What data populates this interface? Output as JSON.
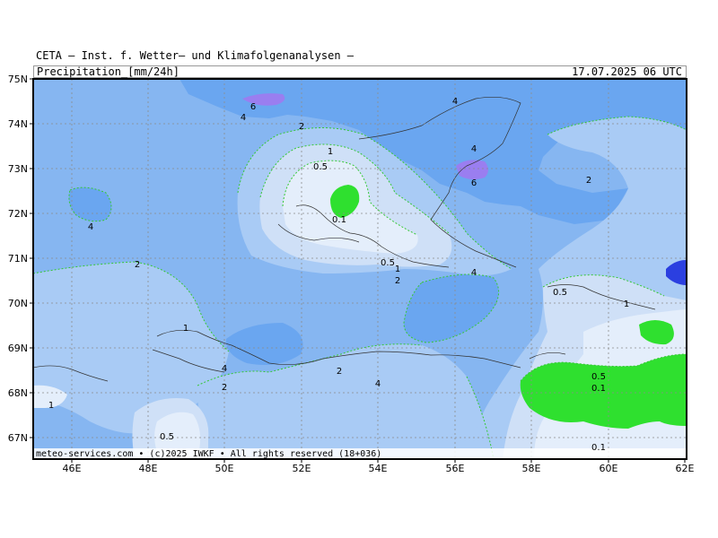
{
  "header": {
    "title": "CETA — Inst. f. Wetter— und Klimafolgenanalysen —",
    "parameter": "Precipitation_[mm/24h]",
    "valid_time": "17.07.2025 06 UTC"
  },
  "footer": {
    "credit": "meteo-services.com • (c)2025 IWKF • All rights reserved (18+036)"
  },
  "axes": {
    "lon_labels": [
      "46E",
      "48E",
      "50E",
      "52E",
      "54E",
      "56E",
      "58E",
      "60E",
      "62E"
    ],
    "lat_labels": [
      "75N",
      "74N",
      "73N",
      "72N",
      "71N",
      "70N",
      "69N",
      "68N",
      "67N"
    ]
  },
  "legend_colors": {
    "lt_0_1": "#2fe02f",
    "0_1_to_0_5": "#e4eefb",
    "0_5_to_1": "#cfe0f7",
    "1_to_2": "#a9cbf5",
    "2_to_4": "#86b6f1",
    "4_to_6": "#6aa6f0",
    "6_to_10": "#9a7ef0",
    "gt_10": "#2b3fe0",
    "contour_line": "#36c836",
    "grid_line": "#8c8c8c",
    "coastline": "#333333"
  },
  "contour_labels": [
    {
      "text": "6"
    },
    {
      "text": "4"
    },
    {
      "text": "4"
    },
    {
      "text": "2"
    },
    {
      "text": "1"
    },
    {
      "text": "0.5"
    },
    {
      "text": "0.1"
    },
    {
      "text": "4"
    },
    {
      "text": "6"
    },
    {
      "text": "4"
    },
    {
      "text": "2"
    },
    {
      "text": "2"
    },
    {
      "text": "0.5"
    },
    {
      "text": "1"
    },
    {
      "text": "2"
    },
    {
      "text": "4"
    },
    {
      "text": "0.5"
    },
    {
      "text": "1"
    },
    {
      "text": "1"
    },
    {
      "text": "4"
    },
    {
      "text": "2"
    },
    {
      "text": "2"
    },
    {
      "text": "4"
    },
    {
      "text": "1"
    },
    {
      "text": "0.5"
    },
    {
      "text": "0.5"
    },
    {
      "text": "0.1"
    },
    {
      "text": "0.1"
    }
  ]
}
